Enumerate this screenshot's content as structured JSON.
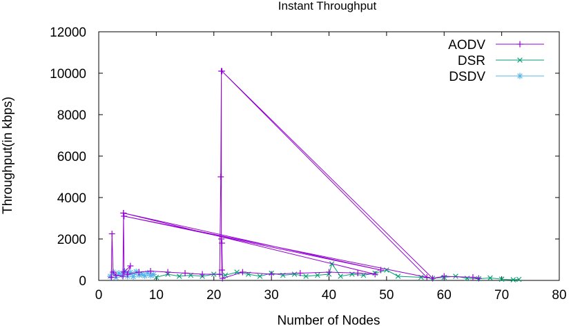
{
  "chart_data": {
    "type": "line",
    "title": "Instant Throughput",
    "xlabel": "Number of Nodes",
    "ylabel": "Throughput(in kbps)",
    "xlim": [
      0,
      80
    ],
    "ylim": [
      0,
      12000
    ],
    "xticks": [
      0,
      10,
      20,
      30,
      40,
      50,
      60,
      70,
      80
    ],
    "yticks": [
      0,
      2000,
      4000,
      6000,
      8000,
      10000,
      12000
    ],
    "legend_position": "top-right",
    "series": [
      {
        "name": "AODV",
        "color": "#9400d3",
        "marker": "+",
        "x": [
          2.2,
          2.3,
          2.5,
          3.0,
          4.2,
          4.3,
          4.4,
          5.5,
          5.0,
          7.0,
          9.0,
          12.0,
          15.0,
          18.0,
          21.0,
          21.2,
          21.3,
          21.3,
          21.4,
          21.4,
          21.5,
          25.0,
          30.0,
          35.0,
          40.0,
          45.0,
          48.0,
          4.3,
          49.0,
          4.4,
          57.0,
          21.4,
          58.0,
          60.0,
          65.0,
          66.0
        ],
        "y": [
          150,
          2250,
          400,
          250,
          200,
          3250,
          400,
          700,
          300,
          400,
          450,
          400,
          350,
          300,
          300,
          5000,
          10100,
          2000,
          500,
          1800,
          100,
          400,
          300,
          350,
          400,
          350,
          300,
          3250,
          500,
          3100,
          150,
          10100,
          100,
          200,
          150,
          100
        ]
      },
      {
        "name": "DSR",
        "color": "#009e73",
        "marker": "x",
        "x": [
          10,
          12,
          14,
          16,
          18,
          20,
          22,
          24,
          26,
          28,
          30,
          32,
          34,
          36,
          38,
          40,
          40.5,
          42,
          44,
          46,
          48,
          50,
          52,
          56,
          58,
          60,
          62,
          64,
          66,
          68,
          70,
          72,
          73
        ],
        "y": [
          150,
          300,
          200,
          250,
          200,
          300,
          250,
          400,
          300,
          200,
          350,
          250,
          300,
          200,
          250,
          300,
          800,
          200,
          300,
          250,
          350,
          500,
          200,
          150,
          100,
          150,
          200,
          100,
          80,
          120,
          60,
          30,
          50
        ]
      },
      {
        "name": "DSDV",
        "color": "#56b4e9",
        "marker": "*",
        "x": [
          2.0,
          2.5,
          3.0,
          3.5,
          4.0,
          4.5,
          5.0,
          5.5,
          6.0,
          6.5,
          7.0,
          7.5,
          8.0,
          8.5,
          9.0,
          9.5
        ],
        "y": [
          200,
          400,
          150,
          350,
          250,
          450,
          200,
          380,
          180,
          420,
          260,
          300,
          220,
          360,
          240,
          280
        ]
      }
    ]
  }
}
